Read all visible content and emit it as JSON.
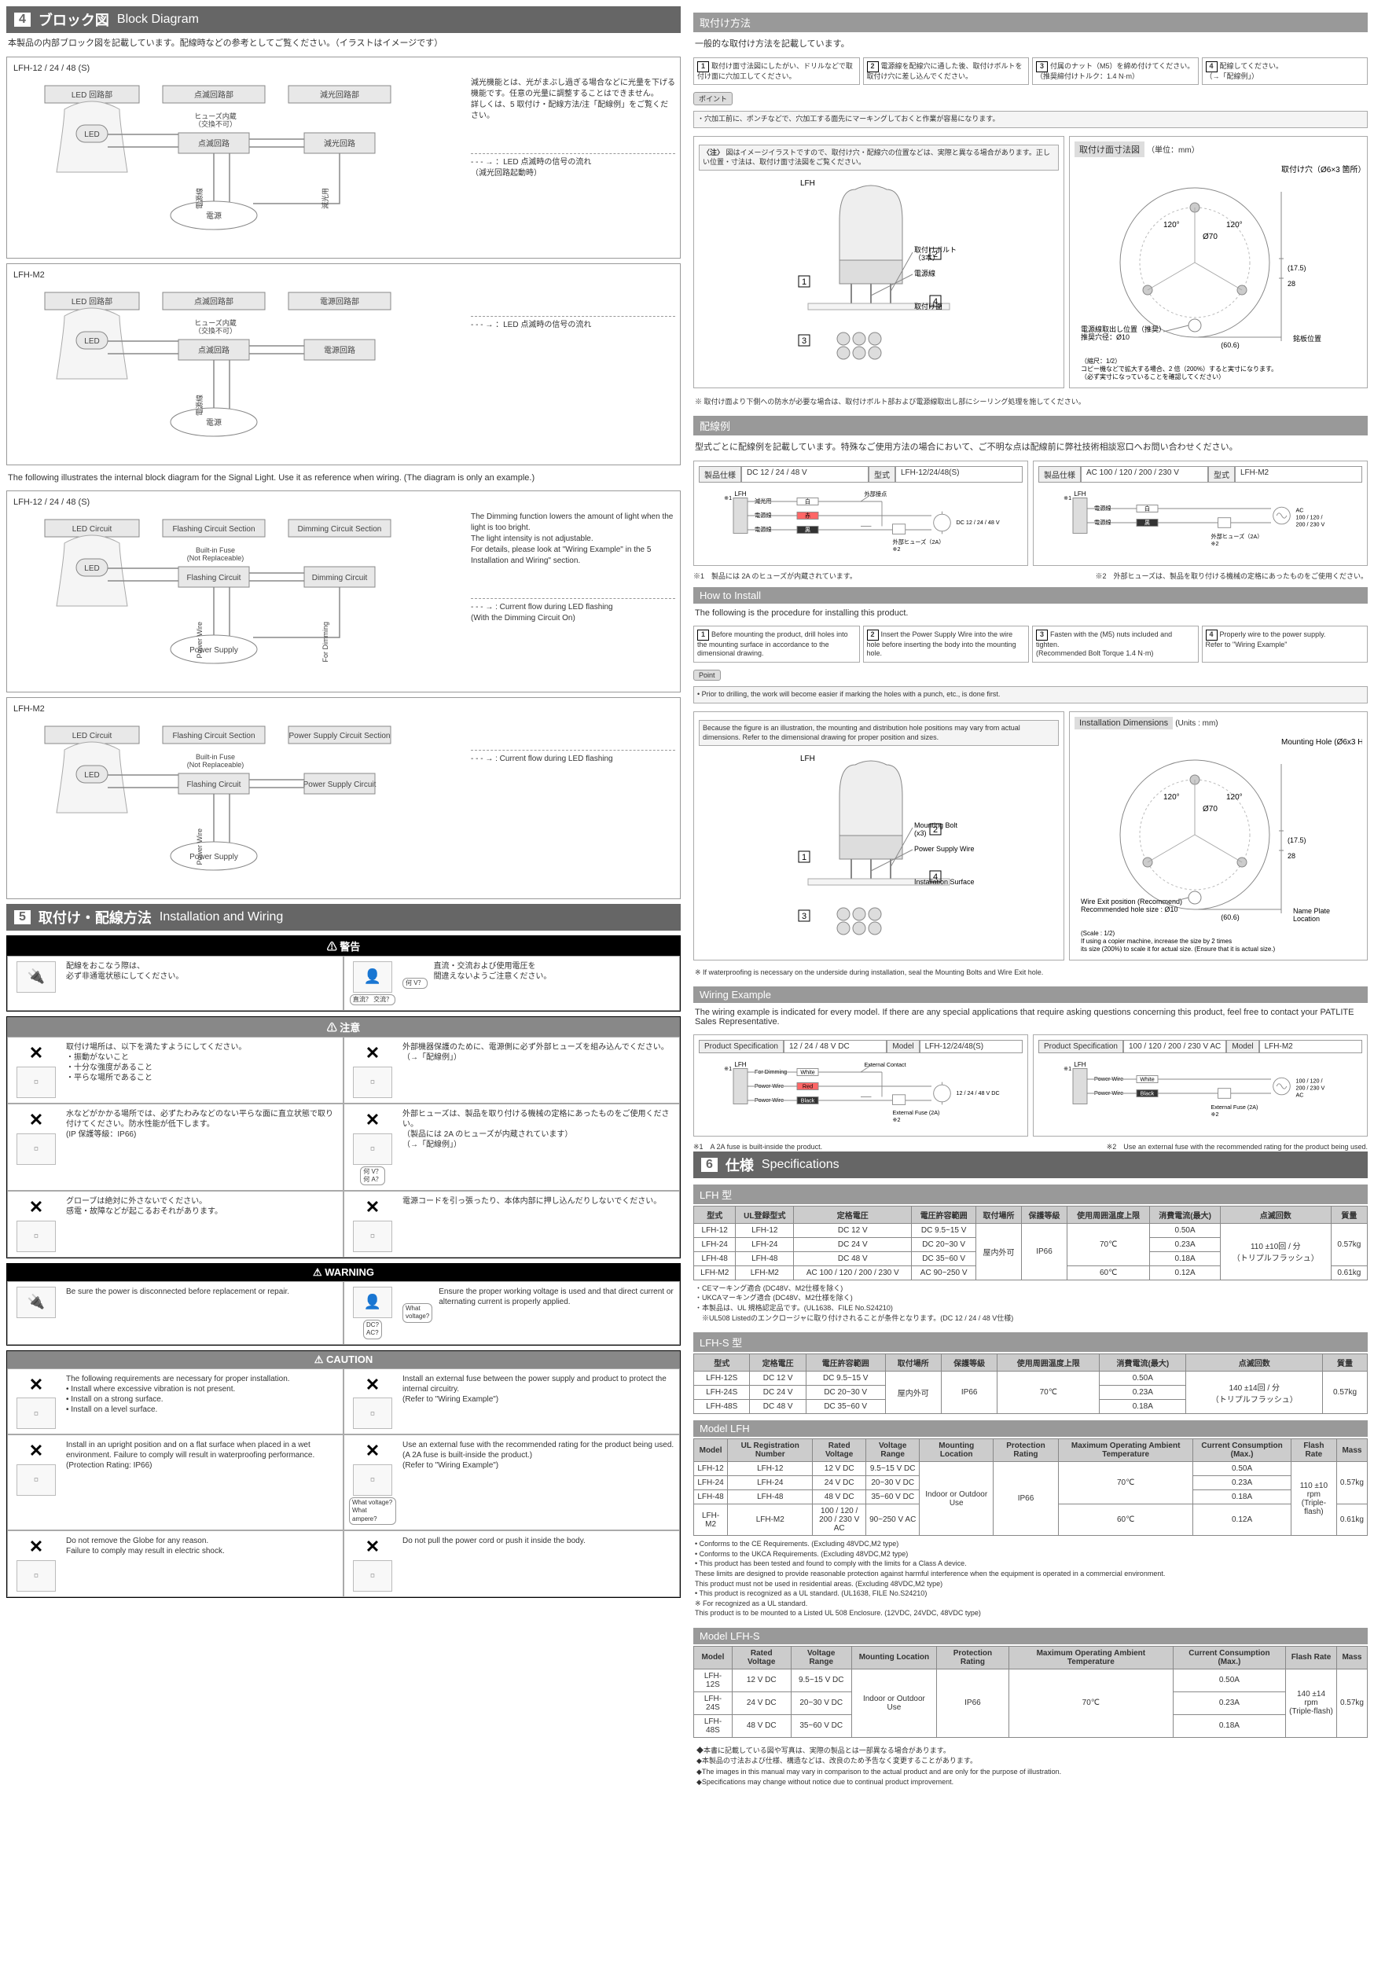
{
  "left": {
    "sec4": {
      "num": "4",
      "title_jp": "ブロック図",
      "title_en": "Block Diagram",
      "intro": "本製品の内部ブロック図を記載しています。配線時などの参考としてご覧ください。（イラストはイメージです）",
      "intro_en": "The following illustrates the internal block diagram for the Signal Light. Use it as reference when wiring. (The diagram is only an example.)",
      "jp_panels": [
        {
          "title": "LFH-12 / 24 / 48 (S)",
          "labels": {
            "led_sec": "LED 回路部",
            "flash_sec": "点滅回路部",
            "dim_sec": "減光回路部",
            "led": "LED",
            "flash": "点滅回路",
            "dim": "減光回路",
            "fuse": "ヒューズ内蔵\n（交換不可）",
            "power": "電源",
            "pwire": "電源線",
            "dwire": "減光用"
          },
          "note": "減光機能とは、光がまぶし過ぎる場合などに光量を下げる機能です。任意の光量に調整することはできません。\n詳しくは、5 取付け・配線方法/注「配線例」をご覧ください。",
          "flow": "：LED 点滅時の信号の流れ\n（減光回路起動時）"
        },
        {
          "title": "LFH-M2",
          "labels": {
            "led_sec": "LED 回路部",
            "flash_sec": "点滅回路部",
            "dim_sec": "電源回路部",
            "led": "LED",
            "flash": "点滅回路",
            "dim": "電源回路",
            "fuse": "ヒューズ内蔵\n（交換不可）",
            "power": "電源",
            "pwire": "電源線",
            "dwire": ""
          },
          "note": "",
          "flow": "：LED 点滅時の信号の流れ"
        }
      ],
      "en_panels": [
        {
          "title": "LFH-12 / 24 / 48 (S)",
          "labels": {
            "led_sec": "LED Circuit",
            "flash_sec": "Flashing Circuit Section",
            "dim_sec": "Dimming Circuit Section",
            "led": "LED",
            "flash": "Flashing Circuit",
            "dim": "Dimming Circuit",
            "fuse": "Built-in Fuse\n(Not Replaceable)",
            "power": "Power\nSupply",
            "pwire": "Power Wire",
            "dwire": "For Dimming"
          },
          "note": "The Dimming function lowers the amount of light when the light is too bright.\nThe light intensity is not adjustable.\nFor details, please look at \"Wiring Example\" in the 5 Installation and Wiring\" section.",
          "flow": ": Current flow during LED flashing\n(With the Dimming Circuit On)"
        },
        {
          "title": "LFH-M2",
          "labels": {
            "led_sec": "LED Circuit",
            "flash_sec": "Flashing Circuit Section",
            "dim_sec": "Power Supply Circuit Section",
            "led": "LED",
            "flash": "Flashing Circuit",
            "dim": "Power Supply\nCircuit",
            "fuse": "Built-in Fuse\n(Not Replaceable)",
            "power": "Power\nSupply",
            "pwire": "Power Wire",
            "dwire": ""
          },
          "note": "",
          "flow": ": Current flow during LED flashing"
        }
      ]
    },
    "sec5": {
      "num": "5",
      "title_jp": "取付け・配線方法",
      "title_en": "Installation and Wiring",
      "warn_jp": {
        "hdr": "⚠ 警告",
        "r1a": "配線をおこなう際は、\n必ず非通電状態にしてください。",
        "r1b": "直流・交流および使用電圧を\n間違えないようご注意ください。",
        "bubble1": "直流？\n交流？",
        "bubble2": "何 V？"
      },
      "caution_jp": {
        "hdr": "⚠ 注意",
        "cells": [
          "取付け場所は、以下を満たすようにしてください。\n・振動がないこと\n・十分な強度があること\n・平らな場所であること",
          "外部機器保護のために、電源側に必ず外部ヒューズを組み込んでください。\n（→「配線例」）",
          "水などがかかる場所では、必ずたわみなどのない平らな面に直立状態で取り付けてください。防水性能が低下します。\n(IP 保護等級：IP66)",
          "外部ヒューズは、製品を取り付ける機械の定格にあったものをご使用ください。\n（製品には 2A のヒューズが内蔵されています）\n（→「配線例」）",
          "グローブは絶対に外さないでください。\n感電・故障などが起こるおそれがあります。",
          "電源コードを引っ張ったり、本体内部に押し込んだりしないでください。"
        ],
        "bubble": "何 V？\n何 A？"
      },
      "warn_en": {
        "hdr": "⚠ WARNING",
        "r1a": "Be sure the power is disconnected before replacement or repair.",
        "r1b": "Ensure the proper working voltage is used and that direct current or alternating current is properly applied.",
        "bubble1": "DC?\nAC?",
        "bubble2": "What\nvoltage?"
      },
      "caution_en": {
        "hdr": "⚠ CAUTION",
        "cells": [
          "The following requirements are necessary for proper installation.\n• Install where excessive vibration is not present.\n• Install on a strong surface.\n• Install on a level surface.",
          "Install an external fuse between the power supply and product to protect the internal circuitry.\n(Refer to \"Wiring Example\")",
          "Install in an upright position and on a flat surface when placed in a wet environment. Failure to comply will result in waterproofing performance.\n(Protection Rating: IP66)",
          "Use an external fuse with the recommended rating for the product being used.\n(A 2A fuse is built-inside the product.)\n(Refer to \"Wiring Example\")",
          "Do not remove the Globe for any reason.\nFailure to comply may result in electric shock.",
          "Do not pull the power cord or push it inside the body."
        ],
        "bubble": "What voltage?\nWhat ampere?"
      }
    }
  },
  "right": {
    "install_jp": {
      "hdr": "取付け方法",
      "intro": "一般的な取付け方法を記載しています。",
      "steps": [
        "取付け面寸法図にしたがい、ドリルなどで取付け面に穴加工してください。",
        "電源線を配線穴に通した後、取付けボルトを取付け穴に差し込んでください。",
        "付属のナット（M5）を締め付けてください。\n（推奨締付けトルク：1.4 N·m）",
        "配線してください。\n（→「配線例」）"
      ],
      "point_lbl": "ポイント",
      "point": "・穴加工前に、ポンチなどで、穴加工する面先にマーキングしておくと作業が容易になります。",
      "note_lbl": "〈注〉",
      "note": "図はイメージイラストですので、取付け穴・配線穴の位置などは、実際と異なる場合があります。正しい位置・寸法は、取付け面寸法図をご覧ください。",
      "dim_title": "取付け面寸法図",
      "dim_unit": "（単位：mm）",
      "labels": {
        "lfh": "LFH",
        "bolt": "取付けボルト\n（3本）",
        "pwire": "電源線",
        "surface": "取付け面",
        "hole": "取付け穴（Ø6×3 箇所）",
        "exit": "電源線取出し位置（推奨）\n推奨穴径：Ø10",
        "plate": "銘板位置",
        "d1": "(17.5)",
        "d2": "28",
        "d3": "(60.6)",
        "a1": "120°",
        "a2": "120°",
        "d4": "Ø70",
        "scale": "（縮尺：1/2）\nコピー機などで拡大する場合、2 倍（200%）すると実寸になります。\n（必ず実寸になっていることを確認してください）"
      },
      "foot": "※ 取付け面より下側への防水が必要な場合は、取付けボルト部および電源線取出し部にシーリング処理を施してください。"
    },
    "wiring_jp": {
      "hdr": "配線例",
      "intro": "型式ごとに配線例を記載しています。特殊なご使用方法の場合において、ご不明な点は配線前に弊社技術相談窓口へお問い合わせください。",
      "left": {
        "spec_lbl": "製品仕様",
        "spec": "DC 12 / 24 / 48 V",
        "model_lbl": "型式",
        "model": "LFH-12/24/48(S)",
        "lfh": "LFH",
        "dim": "減光用",
        "white": "白",
        "pwire": "電源線",
        "red": "赤",
        "black": "黒",
        "contact": "外部接点",
        "fuse": "外部ヒューズ（2A）\n※2",
        "dc": "DC 12 / 24 / 48 V"
      },
      "right": {
        "spec_lbl": "製品仕様",
        "spec": "AC 100 / 120 / 200 / 230 V",
        "model_lbl": "型式",
        "model": "LFH-M2",
        "lfh": "LFH",
        "pwire": "電源線",
        "white": "白",
        "black": "黒",
        "fuse": "外部ヒューズ（2A）\n※2",
        "ac": "AC\n100 / 120 /\n200 / 230 V"
      },
      "note1": "※1　製品には 2A のヒューズが内蔵されています。",
      "note2": "※2　外部ヒューズは、製品を取り付ける機械の定格にあったものをご使用ください。"
    },
    "install_en": {
      "hdr": "How to Install",
      "intro": "The following is the procedure for installing this product.",
      "steps": [
        "Before mounting the product, drill holes into the mounting surface in accordance to the dimensional drawing.",
        "Insert the Power Supply Wire into the wire hole before inserting the body into the mounting hole.",
        "Fasten with the (M5) nuts included and tighten.\n(Recommended Bolt Torque 1.4 N·m)",
        "Properly wire to the power supply.\nRefer to \"Wiring Example\""
      ],
      "point_lbl": "Point",
      "point": "• Prior to drilling, the work will become easier if marking the holes with a punch, etc., is done first.",
      "note_lbl": "<Note>",
      "note": "Because the figure is an illustration, the mounting and distribution hole positions may vary from actual dimensions. Refer to the dimensional drawing for proper position and sizes.",
      "dim_title": "Installation Dimensions",
      "dim_unit": "(Units : mm)",
      "labels": {
        "lfh": "LFH",
        "bolt": "Mounting Bolt\n(x3)",
        "pwire": "Power Supply Wire",
        "surface": "Installation Surface",
        "hole": "Mounting Hole (Ø6x3 Holes)",
        "exit": "Wire Exit position (Recommend)\nRecommended hole size : Ø10",
        "plate": "Name Plate\nLocation",
        "d1": "(17.5)",
        "d2": "28",
        "d3": "(60.6)",
        "a1": "120°",
        "a2": "120°",
        "d4": "Ø70",
        "scale": "(Scale : 1/2)\nIf using a copier machine, increase the size by 2 times\nits size (200%) to scale it for actual size. (Ensure that it is actual size.)"
      },
      "foot": "※ If waterproofing is necessary on the underside during installation, seal the Mounting Bolts and Wire Exit hole."
    },
    "wiring_en": {
      "hdr": "Wiring Example",
      "intro": "The wiring example is indicated for every model. If there are any special applications that require asking questions concerning this product, feel free to contact your PATLITE Sales Representative.",
      "left": {
        "spec_lbl": "Product Specification",
        "spec": "12 / 24 / 48  V DC",
        "model_lbl": "Model",
        "model": "LFH-12/24/48(S)",
        "lfh": "LFH",
        "dim": "For Dimming",
        "white": "White",
        "pwire": "Power Wire",
        "red": "Red",
        "black": "Black",
        "contact": "External Contact",
        "fuse": "External Fuse (2A)\n※2",
        "dc": "12 / 24 / 48 V DC"
      },
      "right": {
        "spec_lbl": "Product Specification",
        "spec": "100 / 120 / 200 / 230 V AC",
        "model_lbl": "Model",
        "model": "LFH-M2",
        "lfh": "LFH",
        "pwire": "Power Wire",
        "white": "White",
        "black": "Black",
        "fuse": "External Fuse (2A)\n※2",
        "ac": "100 / 120 /\n200 / 230 V\nAC"
      },
      "note1": "※1　A 2A fuse is built-inside the product.",
      "note2": "※2　Use an external fuse with the recommended rating for the product being used."
    },
    "sec6": {
      "num": "6",
      "title_jp": "仕様",
      "title_en": "Specifications",
      "lfh_jp": {
        "hdr": "LFH 型",
        "cols": [
          "型式",
          "UL登録型式",
          "定格電圧",
          "電圧許容範囲",
          "取付場所",
          "保護等級",
          "使用周囲温度上限",
          "消費電流(最大)",
          "点滅回数",
          "質量"
        ],
        "rows": [
          [
            "LFH-12",
            "LFH-12",
            "DC 12 V",
            "DC 9.5~15 V",
            "屋内外可",
            "IP66",
            "70℃",
            "0.50A",
            "110 ±10回 / 分\n（トリプルフラッシュ）",
            "0.57kg"
          ],
          [
            "LFH-24",
            "LFH-24",
            "DC 24 V",
            "DC 20~30 V",
            "",
            "",
            "",
            "0.23A",
            "",
            ""
          ],
          [
            "LFH-48",
            "LFH-48",
            "DC 48 V",
            "DC 35~60 V",
            "",
            "",
            "",
            "0.18A",
            "",
            ""
          ],
          [
            "LFH-M2",
            "LFH-M2",
            "AC 100 / 120 / 200 / 230 V",
            "AC 90~250 V",
            "",
            "",
            "60℃",
            "0.12A",
            "",
            "0.61kg"
          ]
        ],
        "notes": "・CEマーキング適合 (DC48V、M2仕様を除く)\n・UKCAマーキング適合 (DC48V、M2仕様を除く)\n・本製品は、UL 規格認定品です。(UL1638、FILE No.S24210)\n　※UL508 Listedのエンクロージャに取り付けされることが条件となります。(DC 12 / 24 / 48 V仕様)"
      },
      "lfhs_jp": {
        "hdr": "LFH-S 型",
        "cols": [
          "型式",
          "定格電圧",
          "電圧許容範囲",
          "取付場所",
          "保護等級",
          "使用周囲温度上限",
          "消費電流(最大)",
          "点滅回数",
          "質量"
        ],
        "rows": [
          [
            "LFH-12S",
            "DC 12 V",
            "DC 9.5~15 V",
            "屋内外可",
            "IP66",
            "70℃",
            "0.50A",
            "140 ±14回 / 分\n（トリプルフラッシュ）",
            "0.57kg"
          ],
          [
            "LFH-24S",
            "DC 24 V",
            "DC 20~30 V",
            "",
            "",
            "",
            "0.23A",
            "",
            ""
          ],
          [
            "LFH-48S",
            "DC 48 V",
            "DC 35~60 V",
            "",
            "",
            "",
            "0.18A",
            "",
            ""
          ]
        ]
      },
      "lfh_en": {
        "hdr": "Model LFH",
        "cols": [
          "Model",
          "UL Registration Number",
          "Rated Voltage",
          "Voltage Range",
          "Mounting Location",
          "Protection Rating",
          "Maximum Operating Ambient Temperature",
          "Current Consumption (Max.)",
          "Flash Rate",
          "Mass"
        ],
        "rows": [
          [
            "LFH-12",
            "LFH-12",
            "12 V DC",
            "9.5~15 V DC",
            "Indoor or Outdoor Use",
            "IP66",
            "70℃",
            "0.50A",
            "110 ±10 rpm\n(Triple-flash)",
            "0.57kg"
          ],
          [
            "LFH-24",
            "LFH-24",
            "24 V DC",
            "20~30 V DC",
            "",
            "",
            "",
            "0.23A",
            "",
            ""
          ],
          [
            "LFH-48",
            "LFH-48",
            "48 V DC",
            "35~60 V DC",
            "",
            "",
            "",
            "0.18A",
            "",
            ""
          ],
          [
            "LFH-M2",
            "LFH-M2",
            "100 / 120 /\n200 / 230 V AC",
            "90~250 V AC",
            "",
            "",
            "60℃",
            "0.12A",
            "",
            "0.61kg"
          ]
        ],
        "notes": "• Conforms to the CE Requirements. (Excluding 48VDC,M2 type)\n• Conforms to the UKCA Requirements. (Excluding 48VDC,M2 type)\n• This product has been tested and found to comply with the limits for a Class A device.\n  These limits are designed to provide reasonable protection against harmful interference when the equipment is operated in a commercial environment.\n  This product must not be used in residential areas. (Excluding 48VDC,M2 type)\n• This product is recognized as a UL standard. (UL1638, FILE No.S24210)\n  ※ For recognized as a UL standard.\n  This product is to be mounted to a Listed UL 508 Enclosure. (12VDC, 24VDC, 48VDC type)"
      },
      "lfhs_en": {
        "hdr": "Model LFH-S",
        "cols": [
          "Model",
          "Rated Voltage",
          "Voltage Range",
          "Mounting Location",
          "Protection Rating",
          "Maximum Operating Ambient Temperature",
          "Current Consumption (Max.)",
          "Flash Rate",
          "Mass"
        ],
        "rows": [
          [
            "LFH-12S",
            "12 V DC",
            "9.5~15 V DC",
            "Indoor or Outdoor Use",
            "IP66",
            "70℃",
            "0.50A",
            "140 ±14 rpm\n(Triple-flash)",
            "0.57kg"
          ],
          [
            "LFH-24S",
            "24 V DC",
            "20~30 V DC",
            "",
            "",
            "",
            "0.23A",
            "",
            ""
          ],
          [
            "LFH-48S",
            "48 V DC",
            "35~60 V DC",
            "",
            "",
            "",
            "0.18A",
            "",
            ""
          ]
        ]
      }
    },
    "footer": "◆本書に記載している図や写真は、実際の製品とは一部異なる場合があります。\n◆本製品の寸法および仕様、構造などは、改良のため予告なく変更することがあります。\n◆The images in this manual may vary in comparison to the actual product and are only for the purpose of illustration.\n◆Specifications may change without notice due to continual product improvement."
  },
  "colors": {
    "hdr_bg": "#666666",
    "subhdr_bg": "#999999",
    "th_bg": "#cccccc",
    "border": "#888888"
  }
}
